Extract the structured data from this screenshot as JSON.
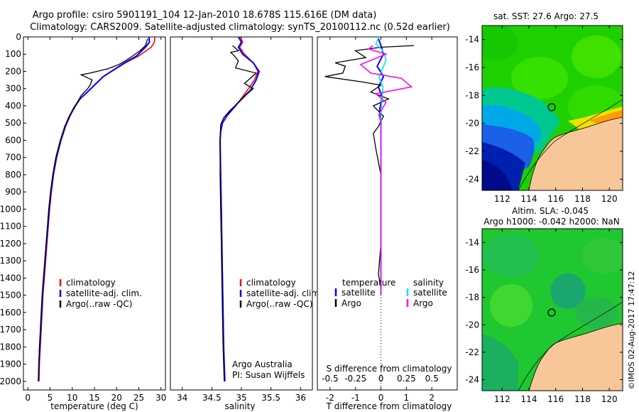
{
  "header": {
    "line1": "Argo profile: csiro 5901191_104 12-Jan-2010 18.678S 115.616E (DM data)",
    "line2": "Climatology: CARS2009. Satellite-adjusted climatology: synTS_20100112.nc (0.52d earlier)"
  },
  "colors": {
    "climatology": "#ff0000",
    "satellite": "#0000ff",
    "argo": "#000000",
    "salinity_satellite": "#00e5ee",
    "salinity_argo": "#ff00ff",
    "land": "#f7c79a",
    "deep_ocean": "#00008b"
  },
  "chart_data": [
    {
      "type": "line",
      "panel": "temperature",
      "xlabel": "temperature (deg C)",
      "ylabel": "",
      "xlim": [
        -1,
        31
      ],
      "ylim": [
        2050,
        0
      ],
      "xticks": [
        0,
        5,
        10,
        15,
        20,
        25,
        30
      ],
      "yticks": [
        0,
        100,
        200,
        300,
        400,
        500,
        600,
        700,
        800,
        900,
        1000,
        1100,
        1200,
        1300,
        1400,
        1500,
        1600,
        1700,
        1800,
        1900,
        2000
      ],
      "legend": [
        "climatology",
        "satellite-adj. clim.",
        "Argo(..raw -QC)"
      ],
      "legend_position": "lower-right",
      "series": [
        {
          "name": "climatology",
          "color": "#ff0000",
          "points": [
            [
              28.6,
              0
            ],
            [
              28.5,
              30
            ],
            [
              27.8,
              60
            ],
            [
              25,
              110
            ],
            [
              22,
              150
            ],
            [
              19.5,
              190
            ],
            [
              17,
              230
            ],
            [
              15,
              280
            ],
            [
              13,
              330
            ],
            [
              11.8,
              360
            ],
            [
              10.5,
              410
            ],
            [
              9.5,
              460
            ],
            [
              8.5,
              520
            ],
            [
              7.5,
              600
            ],
            [
              6.5,
              700
            ],
            [
              5.8,
              800
            ],
            [
              5.3,
              900
            ],
            [
              4.9,
              1000
            ],
            [
              4.6,
              1100
            ],
            [
              4.3,
              1200
            ],
            [
              4,
              1300
            ],
            [
              3.7,
              1400
            ],
            [
              3.4,
              1500
            ],
            [
              3.2,
              1600
            ],
            [
              3,
              1700
            ],
            [
              2.8,
              1800
            ],
            [
              2.6,
              1900
            ],
            [
              2.5,
              2000
            ]
          ]
        },
        {
          "name": "satellite-adj. clim.",
          "color": "#0000ff",
          "points": [
            [
              27.3,
              0
            ],
            [
              27.4,
              30
            ],
            [
              26.5,
              60
            ],
            [
              24.5,
              110
            ],
            [
              21.8,
              150
            ],
            [
              19.4,
              190
            ],
            [
              17,
              230
            ],
            [
              15,
              280
            ],
            [
              13,
              330
            ],
            [
              11.7,
              360
            ],
            [
              10.4,
              410
            ],
            [
              9.4,
              460
            ],
            [
              8.4,
              520
            ],
            [
              7.4,
              600
            ],
            [
              6.4,
              700
            ],
            [
              5.7,
              800
            ],
            [
              5.2,
              900
            ],
            [
              4.8,
              1000
            ],
            [
              4.5,
              1100
            ],
            [
              4.2,
              1200
            ],
            [
              3.9,
              1300
            ],
            [
              3.6,
              1400
            ],
            [
              3.3,
              1500
            ],
            [
              3.1,
              1600
            ],
            [
              2.9,
              1700
            ],
            [
              2.7,
              1800
            ],
            [
              2.5,
              1900
            ],
            [
              2.4,
              2000
            ]
          ]
        },
        {
          "name": "Argo(..raw -QC)",
          "color": "#000000",
          "points": [
            [
              27,
              10
            ],
            [
              26.5,
              50
            ],
            [
              25.3,
              80
            ],
            [
              22.5,
              130
            ],
            [
              20.5,
              160
            ],
            [
              18,
              185
            ],
            [
              14,
              210
            ],
            [
              12,
              220
            ],
            [
              14.5,
              250
            ],
            [
              14,
              280
            ],
            [
              13.5,
              300
            ],
            [
              12,
              340
            ],
            [
              10.5,
              410
            ],
            [
              9.3,
              460
            ],
            [
              8.3,
              520
            ],
            [
              7.3,
              600
            ],
            [
              6.3,
              700
            ],
            [
              5.6,
              800
            ],
            [
              5.1,
              900
            ],
            [
              4.7,
              1000
            ],
            [
              4.4,
              1100
            ],
            [
              4.1,
              1200
            ],
            [
              3.8,
              1300
            ],
            [
              3.5,
              1400
            ],
            [
              3.2,
              1500
            ],
            [
              3,
              1600
            ],
            [
              2.8,
              1700
            ],
            [
              2.6,
              1800
            ],
            [
              2.45,
              1900
            ],
            [
              2.35,
              2000
            ]
          ]
        }
      ]
    },
    {
      "type": "line",
      "panel": "salinity",
      "xlabel": "salinity",
      "ylabel": "",
      "xlim": [
        33.8,
        36.2
      ],
      "ylim": [
        2050,
        0
      ],
      "xticks": [
        34,
        34.5,
        35,
        35.5,
        36
      ],
      "legend": [
        "climatology",
        "satellite-adj. clim.",
        "Argo(..raw -QC)"
      ],
      "legend_position": "lower-right",
      "annotation": [
        "Argo Australia",
        "PI: Susan Wijffels"
      ],
      "series": [
        {
          "name": "climatology",
          "color": "#ff0000",
          "points": [
            [
              34.98,
              0
            ],
            [
              35.02,
              30
            ],
            [
              34.97,
              60
            ],
            [
              35.05,
              100
            ],
            [
              35.2,
              150
            ],
            [
              35.28,
              200
            ],
            [
              35.22,
              250
            ],
            [
              35.1,
              310
            ],
            [
              34.95,
              380
            ],
            [
              34.85,
              420
            ],
            [
              34.75,
              460
            ],
            [
              34.68,
              500
            ],
            [
              34.65,
              550
            ],
            [
              34.64,
              600
            ],
            [
              34.65,
              800
            ],
            [
              34.66,
              1000
            ],
            [
              34.67,
              1200
            ],
            [
              34.68,
              1400
            ],
            [
              34.69,
              1600
            ],
            [
              34.7,
              1800
            ],
            [
              34.72,
              2000
            ]
          ]
        },
        {
          "name": "satellite-adj. clim.",
          "color": "#0000ff",
          "points": [
            [
              34.95,
              0
            ],
            [
              35,
              30
            ],
            [
              34.95,
              60
            ],
            [
              35.02,
              100
            ],
            [
              35.2,
              150
            ],
            [
              35.3,
              200
            ],
            [
              35.25,
              250
            ],
            [
              35.15,
              310
            ],
            [
              34.95,
              380
            ],
            [
              34.85,
              420
            ],
            [
              34.75,
              460
            ],
            [
              34.68,
              500
            ],
            [
              34.65,
              550
            ],
            [
              34.64,
              600
            ],
            [
              34.65,
              800
            ],
            [
              34.66,
              1000
            ],
            [
              34.67,
              1200
            ],
            [
              34.68,
              1400
            ],
            [
              34.69,
              1600
            ],
            [
              34.7,
              1800
            ],
            [
              34.72,
              2000
            ]
          ]
        },
        {
          "name": "Argo(..raw -QC)",
          "color": "#000000",
          "points": [
            [
              34.85,
              50
            ],
            [
              34.95,
              80
            ],
            [
              34.82,
              90
            ],
            [
              34.88,
              110
            ],
            [
              34.95,
              140
            ],
            [
              34.9,
              180
            ],
            [
              35.25,
              210
            ],
            [
              35.15,
              240
            ],
            [
              35.05,
              270
            ],
            [
              35.2,
              300
            ],
            [
              35.1,
              330
            ],
            [
              34.95,
              380
            ],
            [
              34.8,
              430
            ],
            [
              34.7,
              470
            ],
            [
              34.65,
              510
            ],
            [
              34.64,
              600
            ],
            [
              34.64,
              800
            ],
            [
              34.65,
              1000
            ],
            [
              34.66,
              1200
            ],
            [
              34.67,
              1400
            ],
            [
              34.68,
              1600
            ],
            [
              34.69,
              1800
            ],
            [
              34.71,
              2000
            ]
          ]
        }
      ]
    },
    {
      "type": "line",
      "panel": "differences",
      "xlabel": "T difference from climatology",
      "x2label": "S difference from climatology",
      "ylabel": "",
      "xlim": [
        -2.5,
        3
      ],
      "ylim": [
        2050,
        0
      ],
      "xticks": [
        -2,
        -1,
        0,
        1,
        2
      ],
      "x2ticks": [
        "-0.5",
        "-0.25",
        "0",
        "0.25",
        "0.5"
      ],
      "legend": [
        "temperature",
        "satellite",
        "Argo",
        "salinity",
        "satellite",
        "Argo"
      ],
      "legend_position": "lower",
      "series": [
        {
          "name": "satellite",
          "quantity": "temperature",
          "color": "#0000ff",
          "points": [
            [
              -0.1,
              10
            ],
            [
              0,
              50
            ],
            [
              0.1,
              100
            ],
            [
              -0.15,
              170
            ],
            [
              0.1,
              230
            ],
            [
              -0.1,
              290
            ],
            [
              0.05,
              350
            ],
            [
              -0.05,
              420
            ],
            [
              0,
              500
            ],
            [
              0,
              1000
            ],
            [
              0,
              1500
            ]
          ]
        },
        {
          "name": "Argo",
          "quantity": "temperature",
          "color": "#000000",
          "points": [
            [
              1.3,
              50
            ],
            [
              0,
              60
            ],
            [
              -1,
              80
            ],
            [
              -0.6,
              120
            ],
            [
              -1.8,
              150
            ],
            [
              -1.4,
              170
            ],
            [
              -1.5,
              210
            ],
            [
              -2.2,
              230
            ],
            [
              -0.8,
              260
            ],
            [
              0,
              280
            ],
            [
              -0.4,
              320
            ],
            [
              0.3,
              360
            ],
            [
              -0.3,
              400
            ],
            [
              0.1,
              460
            ],
            [
              -0.1,
              520
            ],
            [
              -0.3,
              560
            ],
            [
              -0.2,
              650
            ],
            [
              0,
              800
            ],
            [
              0,
              1000
            ],
            [
              0,
              1200
            ],
            [
              -0.1,
              1380
            ],
            [
              0,
              1450
            ]
          ]
        },
        {
          "name": "satellite",
          "quantity": "salinity",
          "color": "#00e5ee",
          "points": [
            [
              -0.02,
              0
            ],
            [
              -0.05,
              40
            ],
            [
              0.02,
              80
            ],
            [
              0.05,
              130
            ],
            [
              0.02,
              180
            ],
            [
              -0.02,
              230
            ],
            [
              0.02,
              290
            ],
            [
              0.01,
              360
            ],
            [
              0,
              450
            ],
            [
              0,
              1000
            ],
            [
              0,
              1500
            ]
          ]
        },
        {
          "name": "Argo",
          "quantity": "salinity",
          "color": "#ff00ff",
          "points": [
            [
              -0.08,
              50
            ],
            [
              -0.12,
              70
            ],
            [
              0.05,
              100
            ],
            [
              -0.2,
              160
            ],
            [
              -0.1,
              210
            ],
            [
              0.2,
              240
            ],
            [
              0.3,
              290
            ],
            [
              -0.05,
              330
            ],
            [
              0.05,
              380
            ],
            [
              -0.02,
              450
            ],
            [
              0,
              500
            ],
            [
              0,
              1000
            ],
            [
              0,
              1500
            ]
          ]
        }
      ]
    },
    {
      "type": "heatmap",
      "panel": "sst_map",
      "title": "sat. SST: 27.6  Argo: 27.5",
      "xlim": [
        110.5,
        121
      ],
      "ylim": [
        -24.8,
        -13
      ],
      "xticks": [
        112,
        114,
        116,
        118,
        120
      ],
      "yticks": [
        -14,
        -16,
        -18,
        -20,
        -22,
        -24
      ],
      "argo_position": [
        115.616,
        -18.678
      ]
    },
    {
      "type": "heatmap",
      "panel": "sla_map",
      "title": "Altim. SLA: -0.045",
      "subtitle": "Argo h1000: -0.042  h2000: NaN",
      "xlim": [
        110.5,
        121
      ],
      "ylim": [
        -24.8,
        -13
      ],
      "xticks": [
        112,
        114,
        116,
        118,
        120
      ],
      "yticks": [
        -14,
        -16,
        -18,
        -20,
        -22,
        -24
      ],
      "argo_position": [
        115.616,
        -18.678
      ]
    }
  ],
  "footer": {
    "side_stamp": "©IMOS 02-Aug-2017 17:47:12"
  }
}
